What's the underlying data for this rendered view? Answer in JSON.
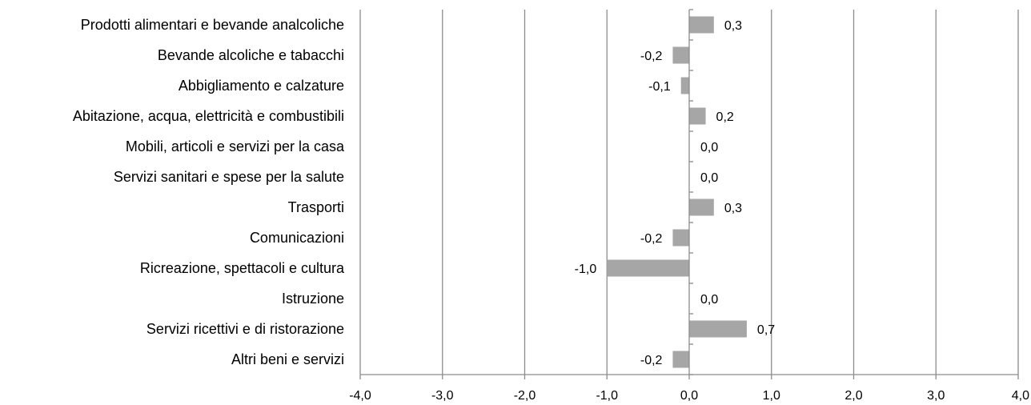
{
  "chart_data": {
    "type": "bar",
    "orientation": "horizontal",
    "categories": [
      "Prodotti alimentari e bevande analcoliche",
      "Bevande alcoliche e tabacchi",
      "Abbigliamento e calzature",
      "Abitazione, acqua, elettricità e combustibili",
      "Mobili, articoli e servizi per la casa",
      "Servizi sanitari e spese per la salute",
      "Trasporti",
      "Comunicazioni",
      "Ricreazione, spettacoli e cultura",
      "Istruzione",
      "Servizi ricettivi e di ristorazione",
      "Altri beni e servizi"
    ],
    "values": [
      0.3,
      -0.2,
      -0.1,
      0.2,
      0.0,
      0.0,
      0.3,
      -0.2,
      -1.0,
      0.0,
      0.7,
      -0.2
    ],
    "value_labels": [
      "0,3",
      "-0,2",
      "-0,1",
      "0,2",
      "0,0",
      "0,0",
      "0,3",
      "-0,2",
      "-1,0",
      "0,0",
      "0,7",
      "-0,2"
    ],
    "xlim": [
      -4.0,
      4.0
    ],
    "x_ticks": [
      -4.0,
      -3.0,
      -2.0,
      -1.0,
      0.0,
      1.0,
      2.0,
      3.0,
      4.0
    ],
    "x_tick_labels": [
      "-4,0",
      "-3,0",
      "-2,0",
      "-1,0",
      "0,0",
      "1,0",
      "2,0",
      "3,0",
      "4,0"
    ],
    "title": "",
    "xlabel": "",
    "ylabel": "",
    "grid": "vertical",
    "legend": "none",
    "colors": {
      "bar": "#a6a6a6",
      "grid": "#8c8c8c",
      "axis": "#8c8c8c",
      "text": "#000000"
    }
  }
}
